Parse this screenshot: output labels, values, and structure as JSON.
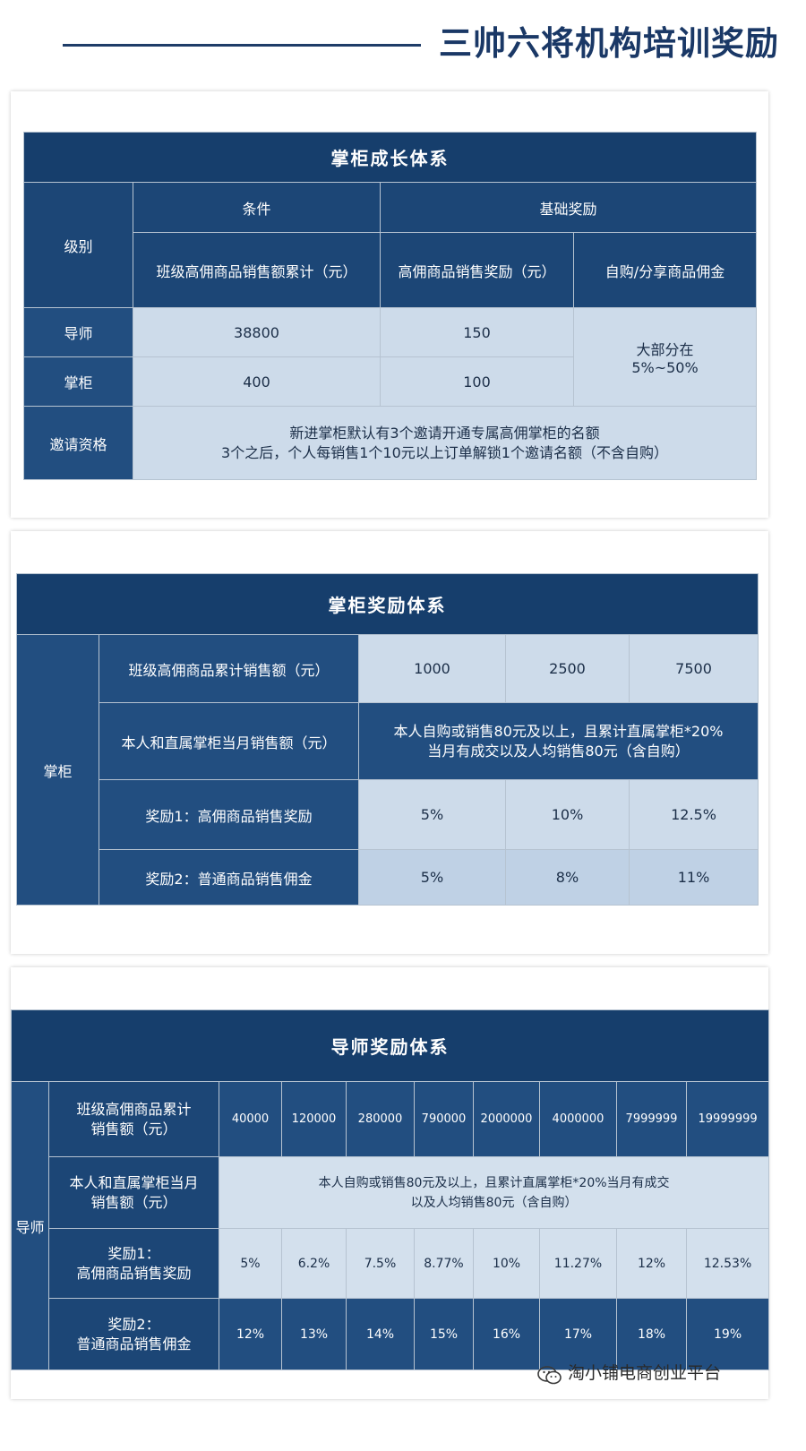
{
  "page_title": "三帅六将机构培训奖励",
  "growth": {
    "title": "掌柜成长体系",
    "level_header": "级别",
    "condition_header": "条件",
    "base_reward_header": "基础奖励",
    "col_sales": "班级高佣商品销售额累计（元）",
    "col_reward": "高佣商品销售奖励（元）",
    "col_commission": "自购/分享商品佣金",
    "rows": [
      {
        "level": "导师",
        "sales": "38800",
        "reward": "150"
      },
      {
        "level": "掌柜",
        "sales": "400",
        "reward": "100"
      }
    ],
    "commission_line1": "大部分在",
    "commission_line2": "5%~50%",
    "invite_label": "邀请资格",
    "invite_line1": "新进掌柜默认有3个邀请开通专属高佣掌柜的名额",
    "invite_line2": "3个之后，个人每销售1个10元以上订单解锁1个邀请名额（不含自购）"
  },
  "manager": {
    "title": "掌柜奖励体系",
    "side_label": "掌柜",
    "row1_label": "班级高佣商品累计销售额（元）",
    "row1_values": [
      "1000",
      "2500",
      "7500"
    ],
    "row2_label": "本人和直属掌柜当月销售额（元）",
    "row2_line1": "本人自购或销售80元及以上，且累计直属掌柜*20%",
    "row2_line2": "当月有成交以及人均销售80元（含自购）",
    "row3_label": "奖励1：高佣商品销售奖励",
    "row3_values": [
      "5%",
      "10%",
      "12.5%"
    ],
    "row4_label": "奖励2：普通商品销售佣金",
    "row4_values": [
      "5%",
      "8%",
      "11%"
    ]
  },
  "mentor": {
    "title": "导师奖励体系",
    "side_label": "导师",
    "row1_label_line1": "班级高佣商品累计",
    "row1_label_line2": "销售额（元）",
    "row1_values": [
      "40000",
      "120000",
      "280000",
      "790000",
      "2000000",
      "4000000",
      "7999999",
      "19999999"
    ],
    "row2_label_line1": "本人和直属掌柜当月",
    "row2_label_line2": "销售额（元）",
    "row2_line1": "本人自购或销售80元及以上，且累计直属掌柜*20%当月有成交",
    "row2_line2": "以及人均销售80元（含自购）",
    "row3_label_line1": "奖励1：",
    "row3_label_line2": "高佣商品销售奖励",
    "row3_values": [
      "5%",
      "6.2%",
      "7.5%",
      "8.77%",
      "10%",
      "11.27%",
      "12%",
      "12.53%"
    ],
    "row4_label_line1": "奖励2：",
    "row4_label_line2": "普通商品销售佣金",
    "row4_values": [
      "12%",
      "13%",
      "14%",
      "15%",
      "16%",
      "17%",
      "18%",
      "19%"
    ]
  },
  "watermark": {
    "icon": "wechat-icon",
    "text": "淘小铺电商创业平台"
  }
}
